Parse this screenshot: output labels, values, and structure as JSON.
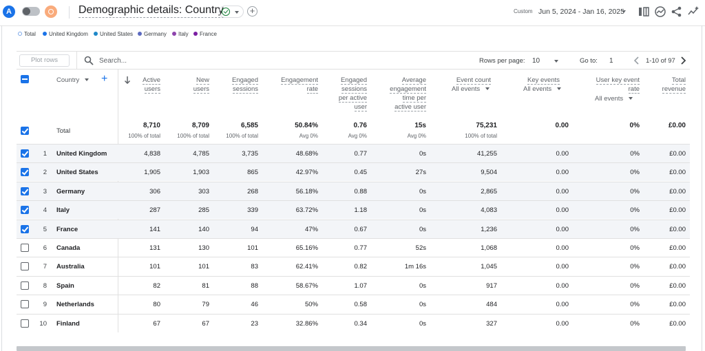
{
  "header": {
    "avatar_letter": "A",
    "title": "Demographic details: Country",
    "date_label": "Custom",
    "date_range": "Jun 5, 2024 - Jan 16, 2025"
  },
  "legend": [
    {
      "label": "Total",
      "color": "#ffffff"
    },
    {
      "label": "United Kingdom",
      "color": "#1a73e8"
    },
    {
      "label": "United States",
      "color": "#1e88c8"
    },
    {
      "label": "Germany",
      "color": "#5c6bc0"
    },
    {
      "label": "Italy",
      "color": "#8e44ad"
    },
    {
      "label": "France",
      "color": "#7b1fa2"
    }
  ],
  "toolbar": {
    "plot_rows_label": "Plot rows",
    "search_placeholder": "Search...",
    "rows_per_page_label": "Rows per page:",
    "rows_per_page_value": "10",
    "goto_label": "Go to:",
    "goto_value": "1",
    "page_info": "1-10 of 97"
  },
  "table": {
    "dimension_header": "Country",
    "headers": {
      "active_users": [
        "Active",
        "users"
      ],
      "new_users": [
        "New",
        "users"
      ],
      "engaged_sessions": [
        "Engaged",
        "sessions"
      ],
      "engagement_rate": [
        "Engagement",
        "rate"
      ],
      "engaged_per_user": [
        "Engaged",
        "sessions",
        "per active",
        "user"
      ],
      "avg_engagement": [
        "Average",
        "engagement",
        "time per",
        "active user"
      ],
      "event_count": [
        "Event count"
      ],
      "key_events": [
        "Key events"
      ],
      "user_key_event_rate": [
        "User key event",
        "rate"
      ],
      "total_revenue": [
        "Total",
        "revenue"
      ]
    },
    "event_filter": "All events",
    "total": {
      "label": "Total",
      "values": [
        "8,710",
        "8,709",
        "6,585",
        "50.84%",
        "0.76",
        "15s",
        "75,231",
        "0.00",
        "0%",
        "£0.00"
      ],
      "subs": [
        "100% of total",
        "100% of total",
        "100% of total",
        "Avg 0%",
        "Avg 0%",
        "Avg 0%",
        "100% of total",
        "",
        "",
        ""
      ]
    },
    "rows": [
      {
        "idx": "1",
        "country": "United Kingdom",
        "selected": true,
        "values": [
          "4,838",
          "4,785",
          "3,735",
          "48.68%",
          "0.77",
          "0s",
          "41,255",
          "0.00",
          "0%",
          "£0.00"
        ]
      },
      {
        "idx": "2",
        "country": "United States",
        "selected": true,
        "values": [
          "1,905",
          "1,903",
          "865",
          "42.97%",
          "0.45",
          "27s",
          "9,504",
          "0.00",
          "0%",
          "£0.00"
        ]
      },
      {
        "idx": "3",
        "country": "Germany",
        "selected": true,
        "values": [
          "306",
          "303",
          "268",
          "56.18%",
          "0.88",
          "0s",
          "2,865",
          "0.00",
          "0%",
          "£0.00"
        ]
      },
      {
        "idx": "4",
        "country": "Italy",
        "selected": true,
        "values": [
          "287",
          "285",
          "339",
          "63.72%",
          "1.18",
          "0s",
          "4,083",
          "0.00",
          "0%",
          "£0.00"
        ]
      },
      {
        "idx": "5",
        "country": "France",
        "selected": true,
        "values": [
          "141",
          "140",
          "94",
          "47%",
          "0.67",
          "0s",
          "1,236",
          "0.00",
          "0%",
          "£0.00"
        ]
      },
      {
        "idx": "6",
        "country": "Canada",
        "selected": false,
        "values": [
          "131",
          "130",
          "101",
          "65.16%",
          "0.77",
          "52s",
          "1,068",
          "0.00",
          "0%",
          "£0.00"
        ]
      },
      {
        "idx": "7",
        "country": "Australia",
        "selected": false,
        "values": [
          "101",
          "101",
          "83",
          "62.41%",
          "0.82",
          "1m 16s",
          "1,045",
          "0.00",
          "0%",
          "£0.00"
        ]
      },
      {
        "idx": "8",
        "country": "Spain",
        "selected": false,
        "values": [
          "82",
          "81",
          "88",
          "58.67%",
          "1.07",
          "0s",
          "917",
          "0.00",
          "0%",
          "£0.00"
        ]
      },
      {
        "idx": "9",
        "country": "Netherlands",
        "selected": false,
        "values": [
          "80",
          "79",
          "46",
          "50%",
          "0.58",
          "0s",
          "484",
          "0.00",
          "0%",
          "£0.00"
        ]
      },
      {
        "idx": "10",
        "country": "Finland",
        "selected": false,
        "values": [
          "67",
          "67",
          "23",
          "32.86%",
          "0.34",
          "0s",
          "327",
          "0.00",
          "0%",
          "£0.00"
        ]
      }
    ]
  }
}
